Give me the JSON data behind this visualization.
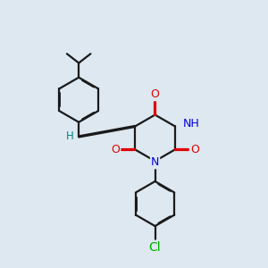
{
  "bg_color": "#dde8f0",
  "bond_color": "#1a1a1a",
  "bond_lw": 1.6,
  "dbo": 0.018,
  "atom_colors": {
    "O": "#e00000",
    "N": "#0000dd",
    "Cl": "#00aa00",
    "H": "#008888",
    "C": "#1a1a1a"
  },
  "font_size": 8.5
}
